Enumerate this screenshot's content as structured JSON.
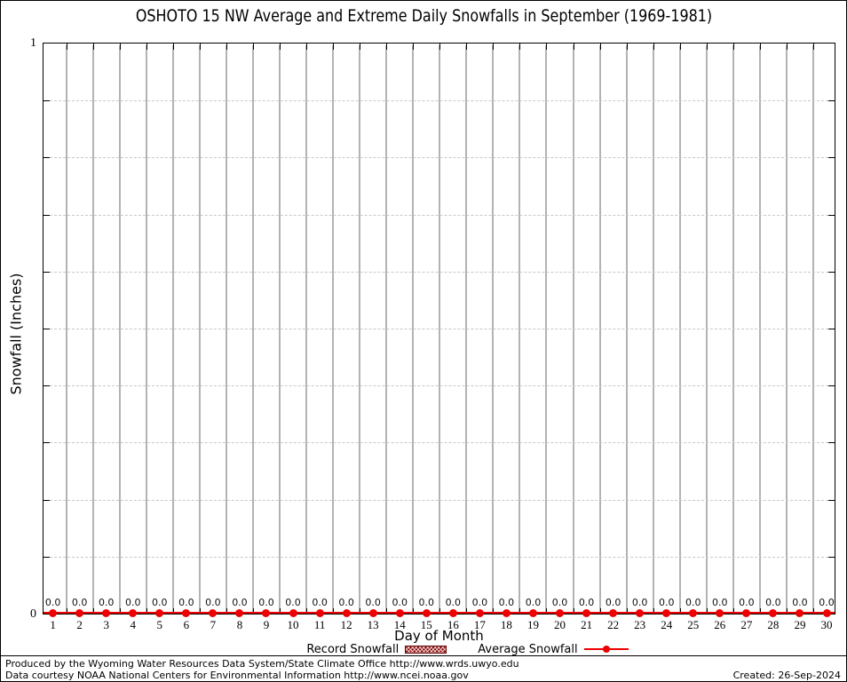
{
  "chart_data": {
    "type": "line",
    "title": "OSHOTO 15 NW Average and Extreme Daily Snowfalls in September (1969-1981)",
    "xlabel": "Day of Month",
    "ylabel": "Snowfall (Inches)",
    "ylim": [
      0,
      1
    ],
    "ytick_labels": [
      "0",
      "1"
    ],
    "ygrid_interval": 0.1,
    "grid": {
      "horizontal": "dashed",
      "vertical": "solid-between-days"
    },
    "legend_position": "bottom-center",
    "x": [
      1,
      2,
      3,
      4,
      5,
      6,
      7,
      8,
      9,
      10,
      11,
      12,
      13,
      14,
      15,
      16,
      17,
      18,
      19,
      20,
      21,
      22,
      23,
      24,
      25,
      26,
      27,
      28,
      29,
      30
    ],
    "series": [
      {
        "name": "Record Snowfall",
        "style": "hatched-box",
        "color": "#8b0000",
        "values": [
          0,
          0,
          0,
          0,
          0,
          0,
          0,
          0,
          0,
          0,
          0,
          0,
          0,
          0,
          0,
          0,
          0,
          0,
          0,
          0,
          0,
          0,
          0,
          0,
          0,
          0,
          0,
          0,
          0,
          0
        ]
      },
      {
        "name": "Average Snowfall",
        "style": "line-filled-circle",
        "color": "#ee0000",
        "values": [
          0.0,
          0.0,
          0.0,
          0.0,
          0.0,
          0.0,
          0.0,
          0.0,
          0.0,
          0.0,
          0.0,
          0.0,
          0.0,
          0.0,
          0.0,
          0.0,
          0.0,
          0.0,
          0.0,
          0.0,
          0.0,
          0.0,
          0.0,
          0.0,
          0.0,
          0.0,
          0.0,
          0.0,
          0.0,
          0.0
        ]
      }
    ],
    "point_labels": [
      "0.0",
      "0.0",
      "0.0",
      "0.0",
      "0.0",
      "0.0",
      "0.0",
      "0.0",
      "0.0",
      "0.0",
      "0.0",
      "0.0",
      "0.0",
      "0.0",
      "0.0",
      "0.0",
      "0.0",
      "0.0",
      "0.0",
      "0.0",
      "0.0",
      "0.0",
      "0.0",
      "0.0",
      "0.0",
      "0.0",
      "0.0",
      "0.0",
      "0.0",
      "0.0"
    ]
  },
  "colors": {
    "average": "#ee0000",
    "record": "#8b0000",
    "grid_vertical": "#b3b3b3",
    "grid_horizontal": "#c9c9c9"
  },
  "footer": {
    "line1": "Produced by the Wyoming Water Resources Data System/State Climate Office http://www.wrds.uwyo.edu",
    "line2": "Data courtesy NOAA National Centers for Environmental Information http://www.ncei.noaa.gov",
    "created": "Created: 26-Sep-2024"
  }
}
